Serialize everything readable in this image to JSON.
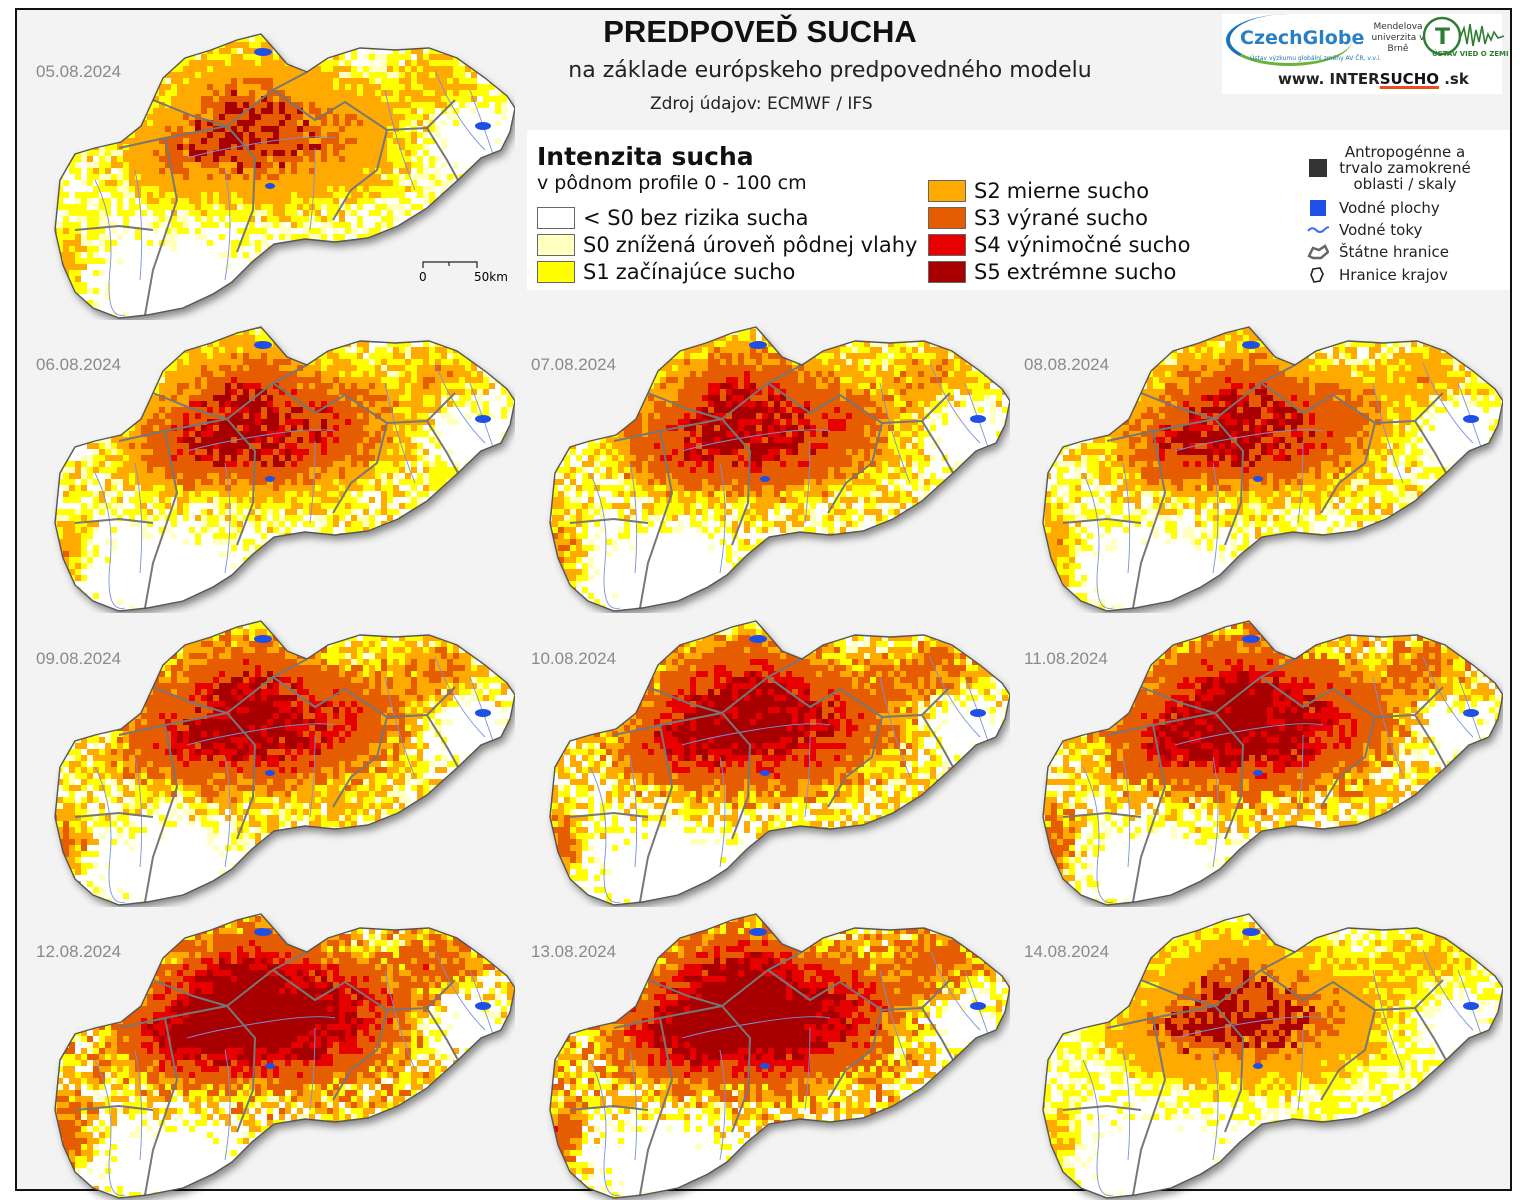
{
  "header": {
    "title": "PREDPOVEĎ SUCHA",
    "subtitle": "na základe európskeho predpovedného modelu",
    "source": "Zdroj údajov: ECMWF / IFS"
  },
  "logos": {
    "czechglobe": "CzechGlobe",
    "czechglobe_sub": "Ústav výzkumu globální změny AV ČR, v.v.i.",
    "mendel": "Mendelova univerzita v Brně",
    "uvz": "ÚSTAV VIED O ZEMI",
    "url_prefix": "www. INTER",
    "url_highlight": "SUCHO",
    "url_suffix": " .sk"
  },
  "legend": {
    "title": "Intenzita sucha",
    "subtitle": "v pôdnom profile 0 - 100 cm",
    "classes": [
      {
        "code": "< S0",
        "label": "bez rizika sucha",
        "color": "#ffffff"
      },
      {
        "code": "S0",
        "label": "znížená úroveň pôdnej vlahy",
        "color": "#ffffc0"
      },
      {
        "code": "S1",
        "label": "začínajúce sucho",
        "color": "#ffff00"
      },
      {
        "code": "S2",
        "label": "mierne sucho",
        "color": "#ffaa00"
      },
      {
        "code": "S3",
        "label": "výrané sucho",
        "color": "#e65c00"
      },
      {
        "code": "S4",
        "label": "výnimočné sucho",
        "color": "#e60000"
      },
      {
        "code": "S5",
        "label": "extrémne sucho",
        "color": "#a80000"
      }
    ],
    "other": [
      {
        "label": "Antropogénne a trvalo zamokrené oblasti / skaly",
        "icon": "dark-square-icon",
        "color": "#333333"
      },
      {
        "label": "Vodné plochy",
        "icon": "water-body-icon",
        "color": "#1f4fe6"
      },
      {
        "label": "Vodné toky",
        "icon": "river-icon",
        "color": "#3f6fe0"
      },
      {
        "label": "Štátne hranice",
        "icon": "state-border-icon",
        "color": "#666666"
      },
      {
        "label": "Hranice krajov",
        "icon": "region-border-icon",
        "color": "#222222"
      }
    ]
  },
  "scale": {
    "start": "0",
    "end": "50km"
  },
  "maps": [
    {
      "date": "05.08.2024",
      "dist": [
        0.3,
        0.12,
        0.3,
        0.2,
        0.06,
        0.0,
        0.02
      ]
    },
    {
      "date": "06.08.2024",
      "dist": [
        0.28,
        0.1,
        0.26,
        0.2,
        0.11,
        0.02,
        0.03
      ]
    },
    {
      "date": "07.08.2024",
      "dist": [
        0.27,
        0.1,
        0.24,
        0.2,
        0.13,
        0.03,
        0.03
      ]
    },
    {
      "date": "08.08.2024",
      "dist": [
        0.28,
        0.12,
        0.24,
        0.2,
        0.11,
        0.02,
        0.03
      ]
    },
    {
      "date": "09.08.2024",
      "dist": [
        0.26,
        0.09,
        0.2,
        0.22,
        0.15,
        0.04,
        0.04
      ]
    },
    {
      "date": "10.08.2024",
      "dist": [
        0.25,
        0.08,
        0.19,
        0.22,
        0.16,
        0.05,
        0.05
      ]
    },
    {
      "date": "11.08.2024",
      "dist": [
        0.25,
        0.07,
        0.18,
        0.22,
        0.17,
        0.05,
        0.06
      ]
    },
    {
      "date": "12.08.2024",
      "dist": [
        0.22,
        0.06,
        0.16,
        0.22,
        0.19,
        0.06,
        0.09
      ]
    },
    {
      "date": "13.08.2024",
      "dist": [
        0.22,
        0.06,
        0.16,
        0.22,
        0.19,
        0.06,
        0.09
      ]
    },
    {
      "date": "14.08.2024",
      "dist": [
        0.3,
        0.14,
        0.3,
        0.18,
        0.05,
        0.0,
        0.03
      ]
    }
  ]
}
